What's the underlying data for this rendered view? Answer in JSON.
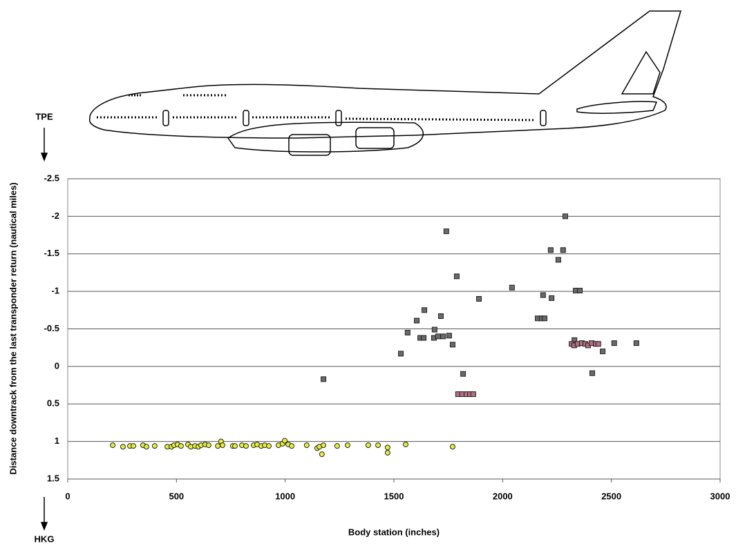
{
  "chart_data": {
    "type": "scatter",
    "ylabel": "Distance downtrack from the last transponder return (nautical miles)",
    "xlabel": "Body station (inches)",
    "annotations": [
      "TPE",
      "HKG"
    ],
    "xlim": [
      0,
      3000
    ],
    "xticks": [
      0,
      500,
      1000,
      1500,
      2000,
      2500,
      3000
    ],
    "ylim": [
      -2.5,
      1.5
    ],
    "yticks": [
      -2.5,
      -2,
      -1.5,
      -1,
      -0.5,
      0,
      0.5,
      1,
      1.5
    ],
    "y_reversed": true,
    "grid": true,
    "series": [
      {
        "marker": "circle",
        "color": "#e6ee3c",
        "x": [
          207,
          254,
          286,
          302,
          346,
          362,
          400,
          458,
          477,
          489,
          505,
          521,
          553,
          566,
          585,
          601,
          613,
          632,
          648,
          690,
          705,
          712,
          759,
          769,
          801,
          820,
          855,
          871,
          890,
          906,
          925,
          969,
          988,
          998,
          1014,
          1030,
          1099,
          1147,
          1157,
          1169,
          1176,
          1239,
          1287,
          1382,
          1427,
          1471,
          1471,
          1554,
          1770
        ],
        "values": [
          1.05,
          1.07,
          1.06,
          1.06,
          1.05,
          1.07,
          1.06,
          1.07,
          1.07,
          1.05,
          1.04,
          1.06,
          1.04,
          1.07,
          1.06,
          1.07,
          1.05,
          1.04,
          1.05,
          1.06,
          1.0,
          1.05,
          1.06,
          1.06,
          1.05,
          1.06,
          1.05,
          1.04,
          1.06,
          1.05,
          1.06,
          1.05,
          1.03,
          0.99,
          1.04,
          1.06,
          1.05,
          1.09,
          1.07,
          1.17,
          1.05,
          1.06,
          1.05,
          1.05,
          1.05,
          1.15,
          1.08,
          1.04,
          1.07
        ]
      },
      {
        "marker": "square",
        "color": "#6a6a6a",
        "x": [
          1176,
          1532,
          1563,
          1605,
          1621,
          1637,
          1640,
          1684,
          1687,
          1703,
          1716,
          1726,
          1741,
          1754,
          1770,
          1789,
          1818,
          1891,
          2043,
          2161,
          2180,
          2186,
          2193,
          2221,
          2225,
          2256,
          2278,
          2288,
          2336,
          2355,
          2412,
          2330,
          2460,
          2513,
          2615
        ],
        "values": [
          0.17,
          -0.17,
          -0.45,
          -0.61,
          -0.38,
          -0.38,
          -0.75,
          -0.38,
          -0.49,
          -0.4,
          -0.67,
          -0.4,
          -1.8,
          -0.41,
          -0.29,
          -1.2,
          0.1,
          -0.9,
          -1.05,
          -0.64,
          -0.64,
          -0.95,
          -0.64,
          -1.55,
          -0.91,
          -1.42,
          -1.55,
          -2.0,
          -1.01,
          -1.01,
          0.09,
          -0.35,
          -0.2,
          -0.31,
          -0.31
        ]
      },
      {
        "marker": "square",
        "color": "#b07080",
        "x": [
          1795,
          1814,
          1834,
          1850,
          1865,
          2317,
          2329,
          2345,
          2364,
          2380,
          2393,
          2409,
          2428,
          2440
        ],
        "values": [
          0.37,
          0.37,
          0.37,
          0.37,
          0.37,
          -0.3,
          -0.28,
          -0.3,
          -0.31,
          -0.3,
          -0.28,
          -0.31,
          -0.3,
          -0.3
        ]
      }
    ]
  }
}
